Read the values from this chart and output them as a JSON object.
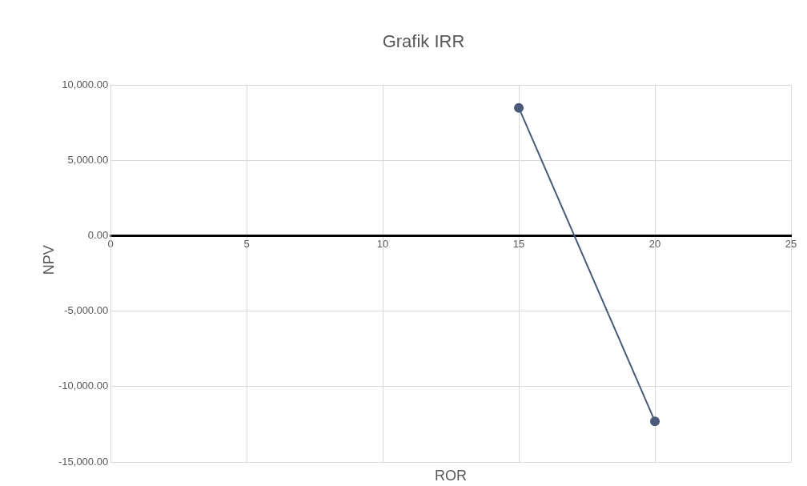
{
  "chart_data": {
    "type": "line",
    "title": "Grafik IRR",
    "xlabel": "ROR",
    "ylabel": "NPV",
    "x": [
      15,
      20
    ],
    "series": [
      {
        "color": "#4a5a7a",
        "values": [
          8500,
          -12300
        ]
      }
    ],
    "xlim": [
      0,
      25
    ],
    "xticks": [
      0,
      5,
      10,
      15,
      20,
      25
    ],
    "ylim": [
      -15000,
      10000
    ],
    "yticks": [
      {
        "value": -15000,
        "label": "-15,000.00"
      },
      {
        "value": -10000,
        "label": "-10,000.00"
      },
      {
        "value": -5000,
        "label": "-5,000.00"
      },
      {
        "value": 0,
        "label": "0.00"
      },
      {
        "value": 5000,
        "label": "5,000.00"
      },
      {
        "value": 10000,
        "label": "10,000.00"
      }
    ],
    "grid": true,
    "marker": "circle",
    "legend": false
  }
}
